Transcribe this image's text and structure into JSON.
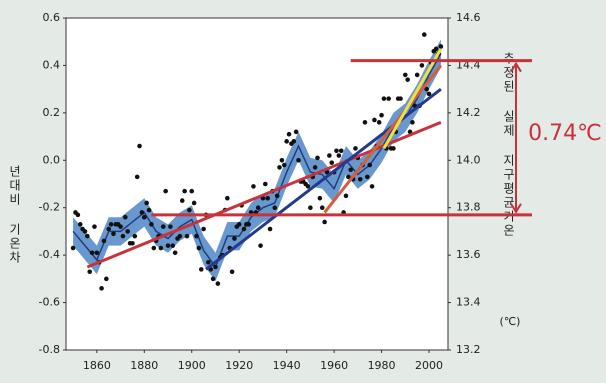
{
  "chart_data": {
    "type": "scatter-line",
    "y_label": "년대비 기온차",
    "y2_label": "추정된 실제 지구평균기온",
    "y2_unit": "(℃)",
    "annotation": "0.74℃",
    "xlim": [
      1847,
      2008
    ],
    "xticks": [
      1860,
      1880,
      1900,
      1920,
      1940,
      1960,
      1980,
      2000
    ],
    "ylim": [
      -0.8,
      0.6
    ],
    "yticks": [
      -0.8,
      -0.6,
      -0.4,
      -0.2,
      {
        "value": 0,
        "label": "0.0"
      },
      0.2,
      0.4,
      0.6
    ],
    "y2lim": [
      13.2,
      14.6
    ],
    "y2ticks": [
      13.2,
      13.4,
      13.6,
      13.8,
      {
        "value": 14,
        "label": "14.0"
      },
      14.2,
      14.4,
      14.6
    ],
    "annual": {
      "color": "#111111",
      "x": [
        1850,
        1851,
        1852,
        1853,
        1854,
        1855,
        1856,
        1857,
        1858,
        1859,
        1860,
        1861,
        1862,
        1863,
        1864,
        1865,
        1866,
        1867,
        1868,
        1869,
        1870,
        1871,
        1872,
        1873,
        1874,
        1875,
        1876,
        1877,
        1878,
        1879,
        1880,
        1881,
        1882,
        1883,
        1884,
        1885,
        1886,
        1887,
        1888,
        1889,
        1890,
        1891,
        1892,
        1893,
        1894,
        1895,
        1896,
        1897,
        1898,
        1899,
        1900,
        1901,
        1902,
        1903,
        1904,
        1905,
        1906,
        1907,
        1908,
        1909,
        1910,
        1911,
        1912,
        1913,
        1914,
        1915,
        1916,
        1917,
        1918,
        1919,
        1920,
        1921,
        1922,
        1923,
        1924,
        1925,
        1926,
        1927,
        1928,
        1929,
        1930,
        1931,
        1932,
        1933,
        1934,
        1935,
        1936,
        1937,
        1938,
        1939,
        1940,
        1941,
        1942,
        1943,
        1944,
        1945,
        1946,
        1947,
        1948,
        1949,
        1950,
        1951,
        1952,
        1953,
        1954,
        1955,
        1956,
        1957,
        1958,
        1959,
        1960,
        1961,
        1962,
        1963,
        1964,
        1965,
        1966,
        1967,
        1968,
        1969,
        1970,
        1971,
        1972,
        1973,
        1974,
        1975,
        1976,
        1977,
        1978,
        1979,
        1980,
        1981,
        1982,
        1983,
        1984,
        1985,
        1986,
        1987,
        1988,
        1989,
        1990,
        1991,
        1992,
        1993,
        1994,
        1995,
        1996,
        1997,
        1998,
        1999,
        2000,
        2001,
        2002,
        2003,
        2004,
        2005
      ],
      "values": [
        -0.37,
        -0.22,
        -0.23,
        -0.27,
        -0.29,
        -0.3,
        -0.32,
        -0.47,
        -0.39,
        -0.28,
        -0.39,
        -0.43,
        -0.54,
        -0.34,
        -0.5,
        -0.29,
        -0.27,
        -0.31,
        -0.27,
        -0.27,
        -0.28,
        -0.32,
        -0.24,
        -0.3,
        -0.35,
        -0.35,
        -0.32,
        -0.07,
        0.06,
        -0.22,
        -0.24,
        -0.18,
        -0.21,
        -0.27,
        -0.37,
        -0.34,
        -0.32,
        -0.37,
        -0.28,
        -0.13,
        -0.36,
        -0.28,
        -0.36,
        -0.39,
        -0.33,
        -0.32,
        -0.17,
        -0.13,
        -0.32,
        -0.21,
        -0.13,
        -0.18,
        -0.32,
        -0.37,
        -0.46,
        -0.29,
        -0.23,
        -0.43,
        -0.46,
        -0.5,
        -0.45,
        -0.52,
        -0.41,
        -0.4,
        -0.21,
        -0.16,
        -0.37,
        -0.47,
        -0.33,
        -0.28,
        -0.27,
        -0.19,
        -0.29,
        -0.27,
        -0.27,
        -0.22,
        -0.11,
        -0.22,
        -0.2,
        -0.36,
        -0.16,
        -0.1,
        -0.16,
        -0.29,
        -0.13,
        -0.2,
        -0.15,
        -0.03,
        0.0,
        -0.02,
        0.08,
        0.11,
        0.07,
        0.08,
        0.12,
        0.0,
        -0.09,
        -0.09,
        -0.1,
        -0.11,
        -0.2,
        -0.07,
        -0.03,
        0.01,
        -0.16,
        -0.2,
        -0.26,
        -0.05,
        0.02,
        -0.01,
        -0.05,
        0.04,
        0.02,
        0.04,
        -0.22,
        -0.15,
        -0.07,
        -0.04,
        -0.08,
        0.05,
        0.01,
        -0.08,
        -0.02,
        0.16,
        -0.07,
        -0.02,
        -0.11,
        0.17,
        0.06,
        0.16,
        0.19,
        0.26,
        0.05,
        0.26,
        0.05,
        0.05,
        0.12,
        0.26,
        0.26,
        0.19,
        0.36,
        0.34,
        0.12,
        0.16,
        0.23,
        0.36,
        0.23,
        0.4,
        0.53,
        0.3,
        0.28,
        0.41,
        0.46,
        0.47,
        0.45,
        0.48
      ]
    },
    "smooth": {
      "color": "#1f3f7a",
      "band_color": "#4f86c6",
      "error": 0.06,
      "x": [
        1850,
        1855,
        1860,
        1865,
        1870,
        1875,
        1880,
        1885,
        1890,
        1895,
        1900,
        1905,
        1910,
        1915,
        1920,
        1925,
        1930,
        1935,
        1940,
        1945,
        1950,
        1955,
        1960,
        1965,
        1970,
        1975,
        1980,
        1985,
        1990,
        1995,
        2000,
        2005
      ],
      "values": [
        -0.3,
        -0.36,
        -0.42,
        -0.3,
        -0.3,
        -0.26,
        -0.22,
        -0.3,
        -0.33,
        -0.28,
        -0.25,
        -0.38,
        -0.45,
        -0.32,
        -0.32,
        -0.24,
        -0.2,
        -0.18,
        -0.05,
        0.06,
        -0.05,
        -0.06,
        -0.12,
        0.0,
        -0.06,
        -0.02,
        0.05,
        0.14,
        0.18,
        0.26,
        0.36,
        0.45
      ]
    },
    "series": [
      {
        "color": "#c8323a",
        "x": [
          1856,
          2005
        ],
        "values": [
          -0.45,
          0.16
        ]
      },
      {
        "color": "#243a8c",
        "x": [
          1906,
          2005
        ],
        "values": [
          -0.46,
          0.3
        ]
      },
      {
        "color": "#d2603a",
        "x": [
          1956,
          2005
        ],
        "values": [
          -0.22,
          0.4
        ]
      },
      {
        "color": "#f0e040",
        "x": [
          1981,
          2005
        ],
        "values": [
          0.05,
          0.47
        ]
      }
    ],
    "reference_lines": [
      {
        "value": 0.42,
        "x_start": 1967
      },
      {
        "value": -0.23,
        "x_start": 1883
      }
    ],
    "reference_color": "#c8323a"
  }
}
